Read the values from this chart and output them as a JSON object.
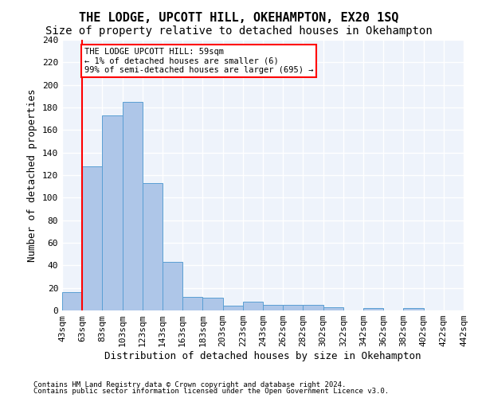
{
  "title": "THE LODGE, UPCOTT HILL, OKEHAMPTON, EX20 1SQ",
  "subtitle": "Size of property relative to detached houses in Okehampton",
  "xlabel": "Distribution of detached houses by size in Okehampton",
  "ylabel": "Number of detached properties",
  "bar_values": [
    16,
    128,
    173,
    185,
    113,
    43,
    12,
    11,
    4,
    8,
    5,
    5,
    5,
    3,
    0,
    2,
    0,
    2,
    0,
    0
  ],
  "x_tick_labels": [
    "43sqm",
    "63sqm",
    "83sqm",
    "103sqm",
    "123sqm",
    "143sqm",
    "163sqm",
    "183sqm",
    "203sqm",
    "223sqm",
    "243sqm",
    "262sqm",
    "282sqm",
    "302sqm",
    "322sqm",
    "342sqm",
    "362sqm",
    "382sqm",
    "402sqm",
    "422sqm",
    "442sqm"
  ],
  "bar_color": "#aec6e8",
  "bar_edge_color": "#5a9fd4",
  "ylim": [
    0,
    240
  ],
  "yticks": [
    0,
    20,
    40,
    60,
    80,
    100,
    120,
    140,
    160,
    180,
    200,
    220,
    240
  ],
  "red_line_x": 0.5,
  "annotation_box_text": "THE LODGE UPCOTT HILL: 59sqm\n← 1% of detached houses are smaller (6)\n99% of semi-detached houses are larger (695) →",
  "background_color": "#eef3fb",
  "grid_color": "#ffffff",
  "footer_line1": "Contains HM Land Registry data © Crown copyright and database right 2024.",
  "footer_line2": "Contains public sector information licensed under the Open Government Licence v3.0.",
  "title_fontsize": 11,
  "subtitle_fontsize": 10,
  "axis_label_fontsize": 9,
  "tick_fontsize": 8
}
